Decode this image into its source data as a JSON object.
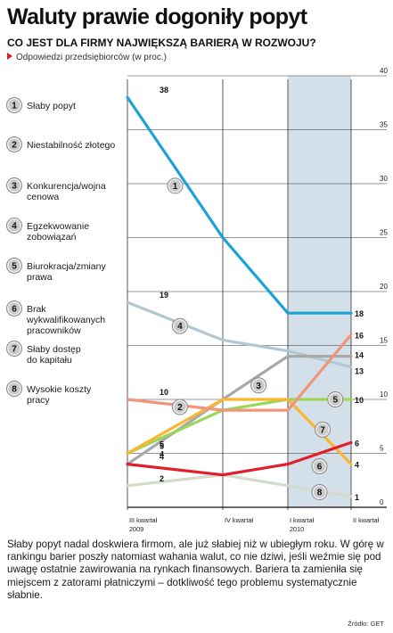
{
  "header": {
    "title": "Waluty prawie dogoniły popyt",
    "subtitle": "CO JEST DLA FIRMY NAJWIĘKSZĄ BARIERĄ W ROZWOJU?",
    "note": "Odpowiedzi przedsiębiorców (w proc.)"
  },
  "footer": {
    "text": "Słaby popyt nadal doskwiera firmom, ale już słabiej niż w ubiegłym roku. W górę w rankingu barier poszły natomiast wahania walut, co nie dziwi, jeśli weźmie się pod uwagę ostatnie zawirowania na rynkach finansowych. Bariera ta zamieniła się miejscem z zatorami płatniczymi – dotkliwość tego problemu systematycznie słabnie.",
    "source": "Źródło: GET"
  },
  "colors": {
    "highlight_band": "#d3e0ea",
    "grid": "#333333",
    "badge_fill": "#c9c9c9",
    "badge_text": "#111111"
  },
  "chart_data": {
    "type": "line",
    "x": [
      "III kwartał 2009",
      "IV kwartał",
      "I kwartał 2010",
      "II kwartał"
    ],
    "x_tick_lines": [
      [
        "III kwartał",
        "2009"
      ],
      [
        "IV kwartał",
        ""
      ],
      [
        "I kwartał",
        "2010"
      ],
      [
        "II kwartał",
        ""
      ]
    ],
    "ylim": [
      0,
      40
    ],
    "yticks": [
      0,
      5,
      10,
      15,
      20,
      25,
      30,
      35,
      40
    ],
    "grid": true,
    "highlighted_period": "I kwartał 2010 – II kwartał",
    "series": [
      {
        "id": 1,
        "name": "Słaby popyt",
        "color": "#1ba3d8",
        "values": [
          38,
          25,
          18,
          18
        ],
        "start_label": "38",
        "end_label": "18"
      },
      {
        "id": 2,
        "name": "Niestabilność złotego",
        "color": "#ef967a",
        "values": [
          10,
          9,
          9,
          16
        ],
        "start_label": "10",
        "end_label": "16"
      },
      {
        "id": 3,
        "name": "Konkurencja/wojna cenowa",
        "color": "#a8a8a8",
        "values": [
          4,
          10,
          14,
          14
        ],
        "start_label": "4",
        "end_label": "14"
      },
      {
        "id": 4,
        "name": "Egzekwowanie zobowiązań",
        "color": "#b2c6d3",
        "values": [
          19,
          15.5,
          14.5,
          13
        ],
        "start_label": "19",
        "end_label": "13"
      },
      {
        "id": 5,
        "name": "Biurokracja/zmiany prawa",
        "color": "#9ad65a",
        "values": [
          5,
          9,
          10,
          10
        ],
        "start_label": "5",
        "end_label": "10"
      },
      {
        "id": 6,
        "name": "Brak wykwalifikowanych pracowników",
        "color": "#e01f2a",
        "values": [
          4,
          3,
          4,
          6
        ],
        "start_label": "4",
        "end_label": "6"
      },
      {
        "id": 7,
        "name": "Słaby dostęp do kapitału",
        "color": "#f7b731",
        "values": [
          5,
          10,
          10,
          4
        ],
        "start_label": "5",
        "end_label": "4"
      },
      {
        "id": 8,
        "name": "Wysokie koszty pracy",
        "color": "#d2dbcc",
        "values": [
          2,
          3,
          2,
          1
        ],
        "start_label": "2",
        "end_label": "1"
      }
    ],
    "legend": [
      {
        "id": 1,
        "number": "1",
        "lines": [
          "Słaby popyt"
        ]
      },
      {
        "id": 2,
        "number": "2",
        "lines": [
          "Niestabilność złotego"
        ]
      },
      {
        "id": 3,
        "number": "3",
        "lines": [
          "Konkurencja/wojna",
          "cenowa"
        ]
      },
      {
        "id": 4,
        "number": "4",
        "lines": [
          "Egzekwowanie",
          "zobowiązań"
        ]
      },
      {
        "id": 5,
        "number": "5",
        "lines": [
          "Biurokracja/zmiany",
          "prawa"
        ]
      },
      {
        "id": 6,
        "number": "6",
        "lines": [
          "Brak",
          "wykwalifikowanych",
          "pracowników"
        ]
      },
      {
        "id": 7,
        "number": "7",
        "lines": [
          "Słaby dostęp",
          "do kapitału"
        ]
      },
      {
        "id": 8,
        "number": "8",
        "lines": [
          "Wysokie koszty",
          "pracy"
        ]
      }
    ],
    "markers": [
      {
        "series": 1,
        "number": "1",
        "x": 0.5,
        "y": 29.8
      },
      {
        "series": 2,
        "number": "2",
        "x": 0.55,
        "y": 9.3
      },
      {
        "series": 3,
        "number": "3",
        "x": 1.55,
        "y": 11.3
      },
      {
        "series": 4,
        "number": "4",
        "x": 0.55,
        "y": 16.8
      },
      {
        "series": 5,
        "number": "5",
        "x": 2.75,
        "y": 10
      },
      {
        "series": 6,
        "number": "6",
        "x": 2.5,
        "y": 3.8
      },
      {
        "series": 7,
        "number": "7",
        "x": 2.55,
        "y": 7.2
      },
      {
        "series": 8,
        "number": "8",
        "x": 2.5,
        "y": 1.4
      }
    ]
  }
}
